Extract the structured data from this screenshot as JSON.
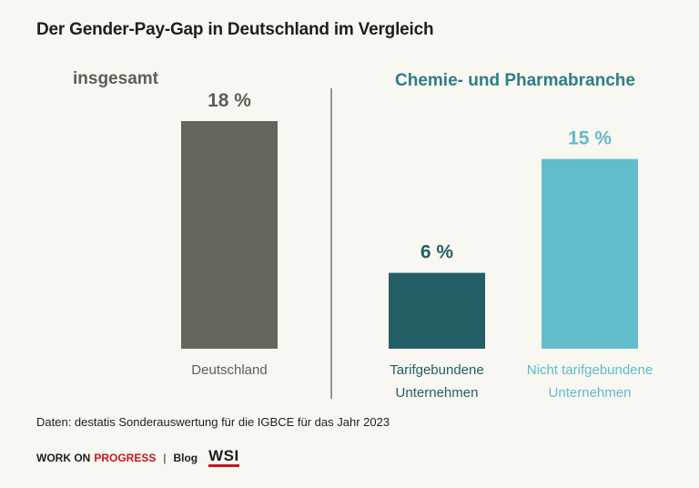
{
  "title": "Der Gender-Pay-Gap in Deutschland im Vergleich",
  "source": "Daten: destatis Sonderauswertung für die IGBCE für das Jahr 2023",
  "footer": {
    "work_on": "WORK ON",
    "progress": "PROGRESS",
    "separator": "|",
    "blog": "Blog",
    "logo_text": "WSI"
  },
  "groups": {
    "left_label": "insgesamt",
    "right_label": "Chemie- und Pharmabranche",
    "left_color": "#5e5e56",
    "right_color": "#2e7d86"
  },
  "chart_data": {
    "type": "bar",
    "categories": [
      "Deutschland",
      "Tarifgebundene Unternehmen",
      "Nicht tarifgebundene Unternehmen"
    ],
    "category_lines": [
      [
        "Deutschland"
      ],
      [
        "Tarifgebundene",
        "Unternehmen"
      ],
      [
        "Nicht tarifgebundene",
        "Unternehmen"
      ]
    ],
    "values": [
      18,
      6,
      15
    ],
    "value_labels": [
      "18 %",
      "6 %",
      "15 %"
    ],
    "colors": [
      "#65655d",
      "#245f65",
      "#62bccb"
    ],
    "label_colors": [
      "#5e5e56",
      "#245f65",
      "#5fbccb"
    ],
    "ylim": [
      0,
      18
    ],
    "grid": false,
    "title": "",
    "xlabel": "",
    "ylabel": ""
  }
}
